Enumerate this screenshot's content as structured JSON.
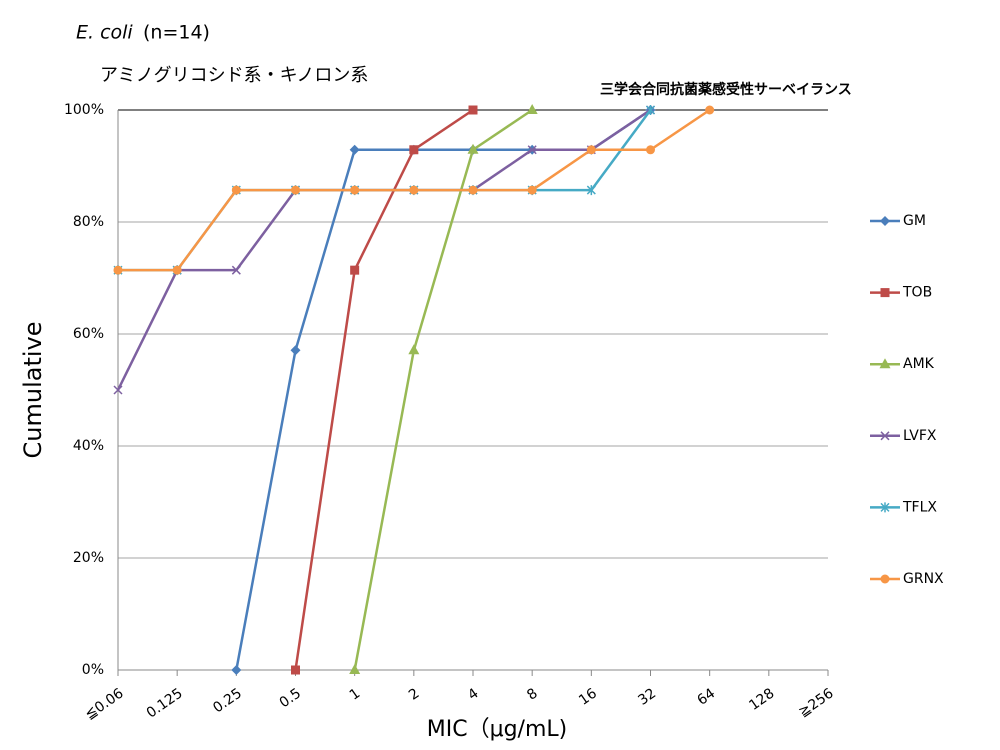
{
  "chart_data": {
    "type": "line",
    "title": {
      "organism": "E. coli",
      "count": "(n=14)"
    },
    "subtitle": "アミノグリコシド系・キノロン系",
    "annotation": "三学会合同抗菌薬感受性サーベイランス",
    "x_label": "MIC（μg/mL)",
    "y_label": "Cumulative",
    "categories": [
      "≦0.06",
      "0.125",
      "0.25",
      "0.5",
      "1",
      "2",
      "4",
      "8",
      "16",
      "32",
      "64",
      "128",
      "≧256"
    ],
    "ylim": [
      0,
      100
    ],
    "yticks": [
      {
        "value": 0,
        "label": "0%"
      },
      {
        "value": 20,
        "label": "20%"
      },
      {
        "value": 40,
        "label": "40%"
      },
      {
        "value": 60,
        "label": "60%"
      },
      {
        "value": 80,
        "label": "80%"
      },
      {
        "value": 100,
        "label": "100%"
      }
    ],
    "grid": true,
    "legend": "right",
    "series": [
      {
        "name": "GM",
        "color": "#4a7ebb",
        "marker": "diamond",
        "values": [
          null,
          null,
          0,
          57.1,
          92.9,
          92.9,
          92.9,
          92.9,
          92.9,
          100,
          null,
          null,
          null
        ]
      },
      {
        "name": "TOB",
        "color": "#be4b48",
        "marker": "square",
        "values": [
          null,
          null,
          null,
          0,
          71.4,
          92.9,
          100,
          null,
          null,
          null,
          null,
          null,
          null
        ]
      },
      {
        "name": "AMK",
        "color": "#98b954",
        "marker": "triangle",
        "values": [
          null,
          null,
          null,
          null,
          0,
          57.1,
          92.9,
          100,
          null,
          null,
          null,
          null,
          null
        ]
      },
      {
        "name": "LVFX",
        "color": "#7d60a0",
        "marker": "x",
        "values": [
          50,
          71.4,
          71.4,
          85.7,
          85.7,
          85.7,
          85.7,
          92.9,
          92.9,
          100,
          null,
          null,
          null
        ]
      },
      {
        "name": "TFLX",
        "color": "#46aac5",
        "marker": "star",
        "values": [
          71.4,
          71.4,
          85.7,
          85.7,
          85.7,
          85.7,
          85.7,
          85.7,
          85.7,
          100,
          null,
          null,
          null
        ]
      },
      {
        "name": "GRNX",
        "color": "#f79646",
        "marker": "circle",
        "values": [
          71.4,
          71.4,
          85.7,
          85.7,
          85.7,
          85.7,
          85.7,
          85.7,
          92.9,
          92.9,
          100,
          null,
          null
        ]
      }
    ]
  }
}
